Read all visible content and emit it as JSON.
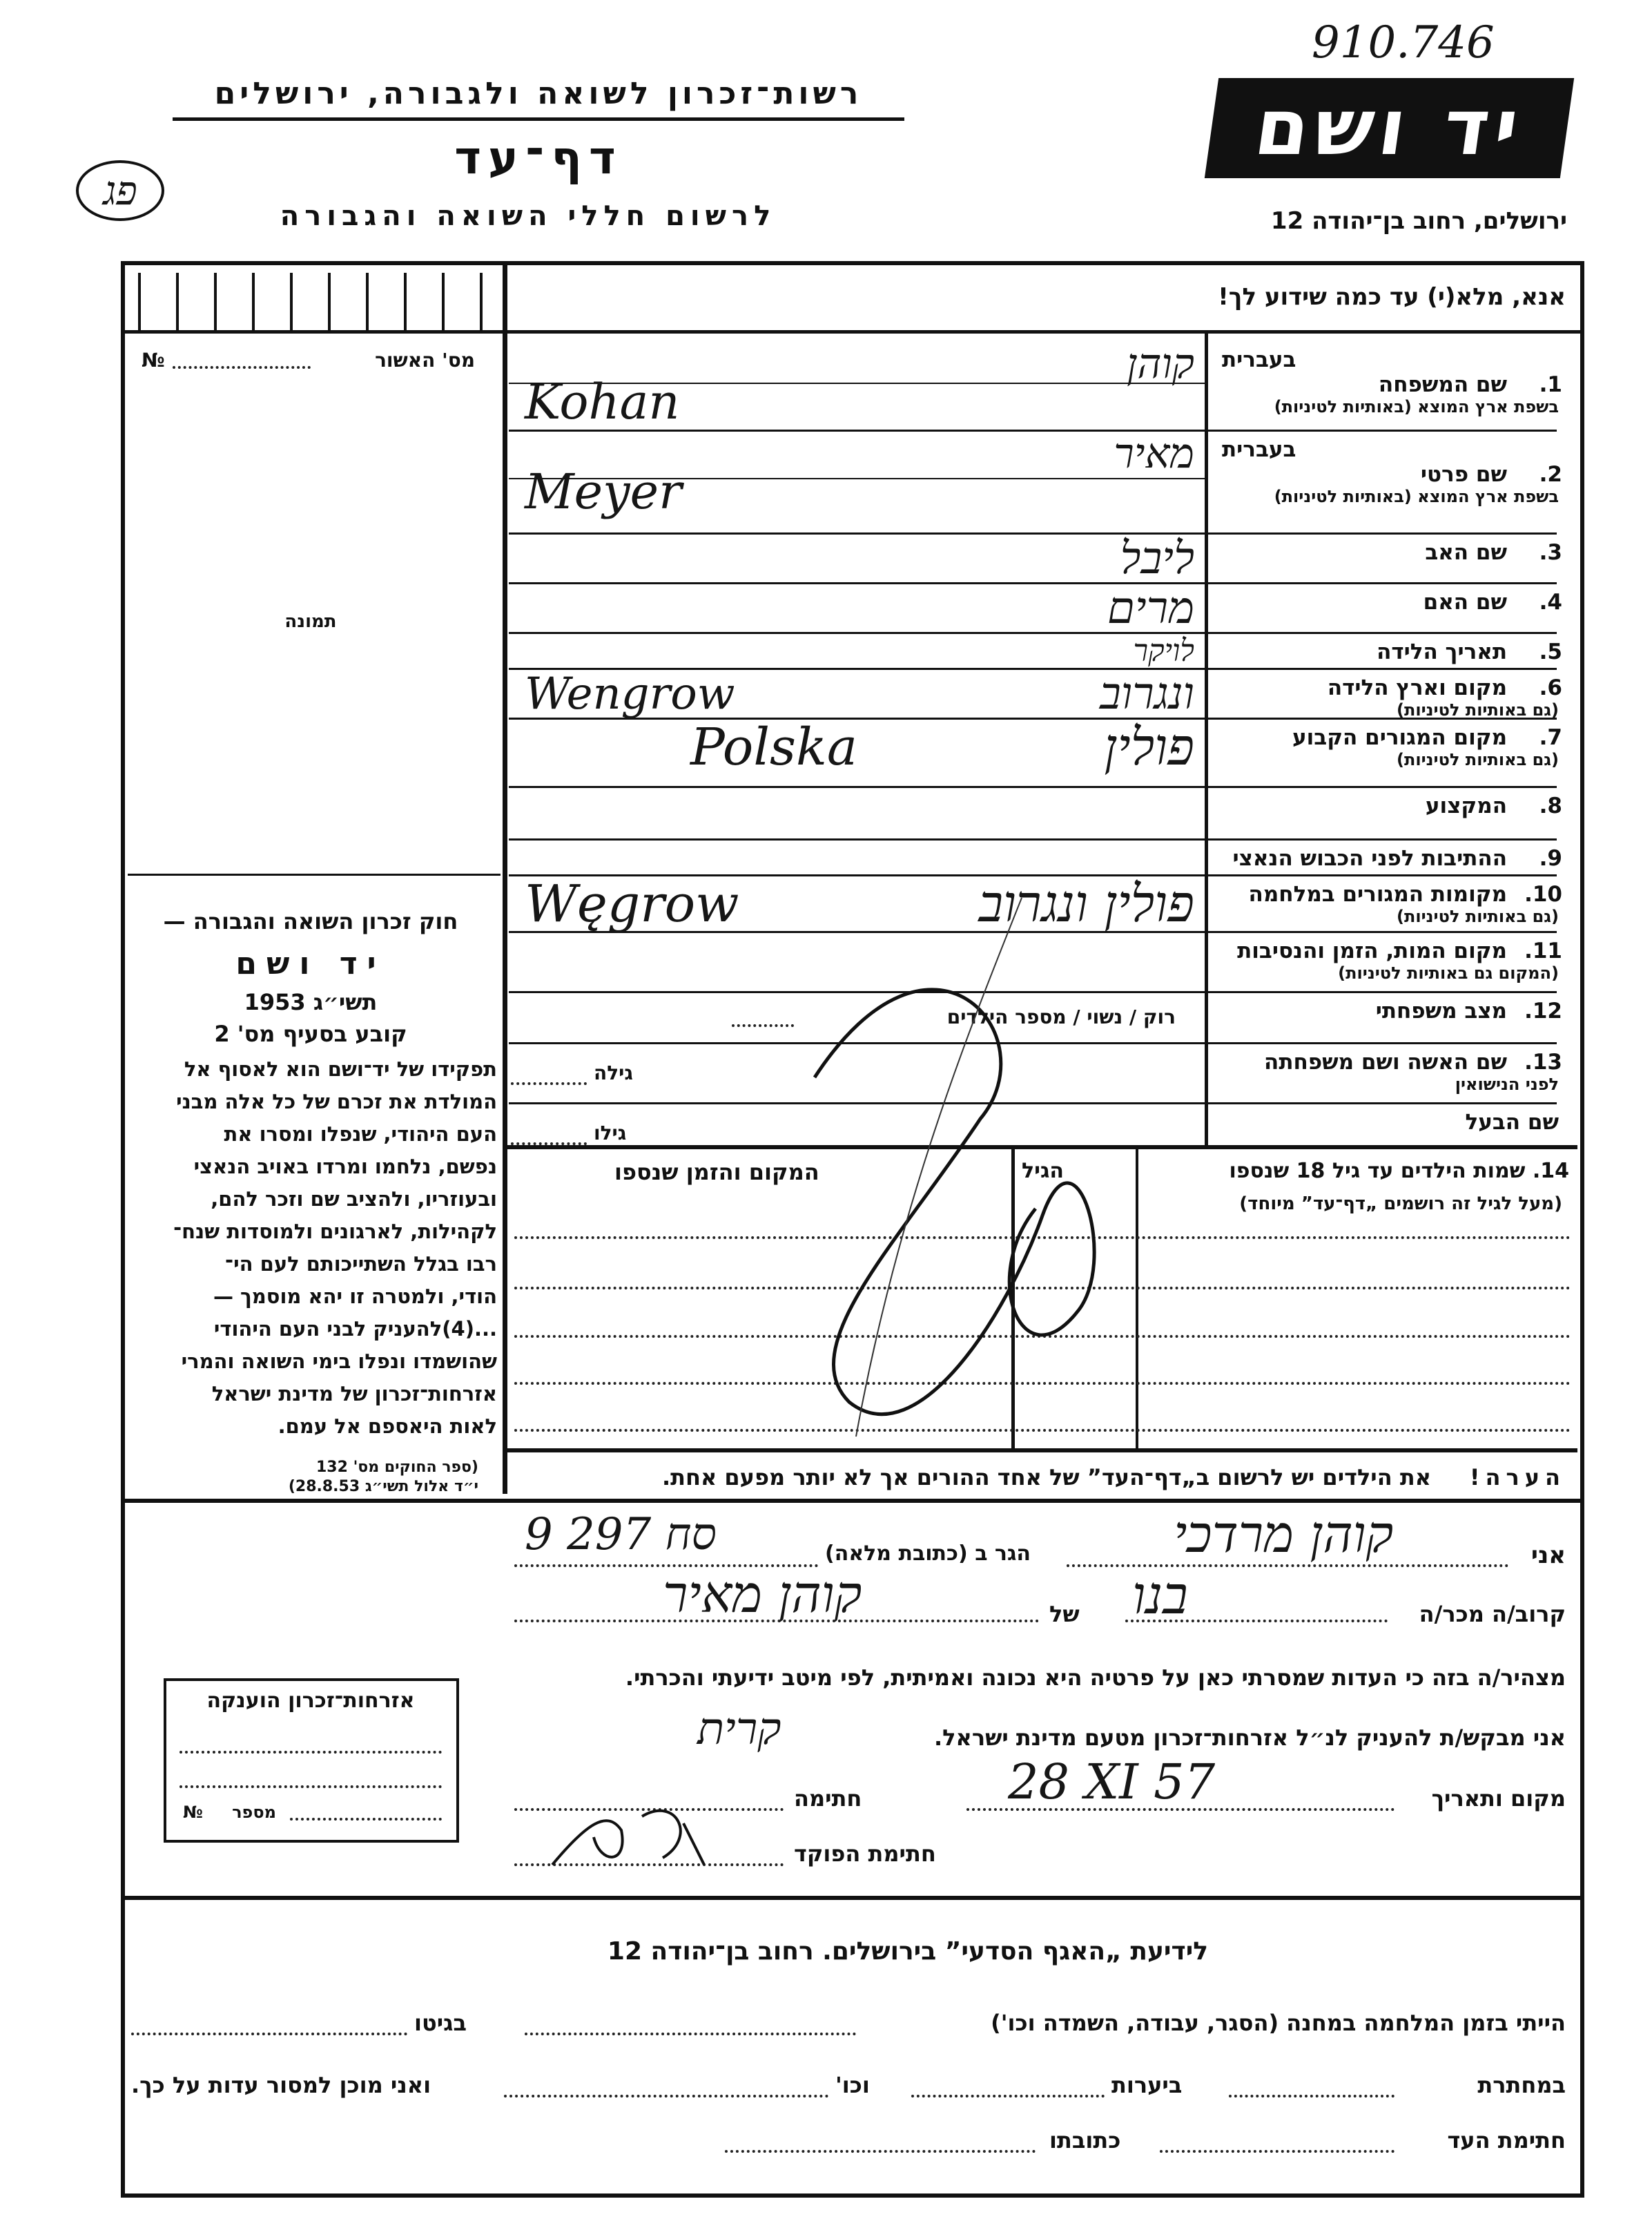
{
  "header": {
    "archive_number": "910.746",
    "org_line": "רשות־זכרון לשואה ולגבורה, ירושלים",
    "form_title": "דף־עד",
    "form_subtitle": "לרשום חללי השואה והגבורה",
    "logo_text": "יד ושם",
    "address": "ירושלים, רחוב בן־יהודה 12",
    "handwritten_mark": "פג"
  },
  "instruction": "אנא, מלא(י) עד כמה שידוע לך!",
  "left": {
    "approval_label": "מס' האשור",
    "approval_no": "№",
    "photo_label": "תמונה",
    "law_title": "חוק זכרון השואה והגבורה —",
    "law_name": "יד ושם",
    "law_year": "תשי״ג 1953",
    "law_clause": "קובע בסעיף מס' 2",
    "law_text": [
      "תפקידו של יד־ושם הוא לאסוף אל",
      "המולדת את זכרם של כל אלה מבני",
      "העם היהודי, שנפלו ומסרו את",
      "נפשם, נלחמו ומרדו באויב הנאצי",
      "ובעוזריו, ולהציב שם וזכר להם,",
      "לקהילות, לארגונים ולמוסדות שנח־",
      "רבו בגלל השתייכותם לעם הי־",
      "הודי, ולמטרה זו יהא מוסמך —",
      "...(4)להעניק לבני העם היהודי",
      "שהושמדו ונפלו בימי השואה והמרי",
      "אזרחות־זכרון של מדינת ישראל",
      "לאות היאספם אל עמם."
    ],
    "law_ref": [
      "(ספר החוקים מס' 132",
      "י״ד אלול תשי״ג 28.8.53)"
    ],
    "certificate": {
      "title": "אזרחות־זכרון הוענקה",
      "number_label": "מספר",
      "no_sign": "№"
    }
  },
  "rows": [
    {
      "num": "1.",
      "label": "שם המשפחה",
      "hebrew_label": "בעברית",
      "sub": "בשפת ארץ המוצא (באותיות לטיניות)",
      "value_he": "קוהן",
      "value_latin": "Kohan"
    },
    {
      "num": "2.",
      "label": "שם פרטי",
      "hebrew_label": "בעברית",
      "sub": "בשפת ארץ המוצא (באותיות לטיניות)",
      "value_he": "מאיר",
      "value_latin": "Meyer"
    },
    {
      "num": "3.",
      "label": "שם האב",
      "value_he": "ליבל"
    },
    {
      "num": "4.",
      "label": "שם האם",
      "value_he": "מרים"
    },
    {
      "num": "5.",
      "label": "תאריך הלידה",
      "value_he": "לויקר"
    },
    {
      "num": "6.",
      "label": "מקום וארץ הלידה",
      "sub": "(גם באותיות לטיניות)",
      "value_he": "ונגרוב",
      "value_latin": "Wengrow"
    },
    {
      "num": "7.",
      "label": "מקום המגורים הקבוע",
      "sub": "(גם באותיות לטיניות)",
      "value_he": "פולין",
      "value_latin": "Polska"
    },
    {
      "num": "8.",
      "label": "המקצוע"
    },
    {
      "num": "9.",
      "label": "ההתיבות לפני הכבוש הנאצי"
    },
    {
      "num": "10.",
      "label": "מקומות המגורים במלחמה",
      "sub": "(גם באותיות לטיניות)",
      "value_he": "פולין ונגרוב",
      "value_latin": "Węgrow"
    },
    {
      "num": "11.",
      "label": "מקום המות, הזמן והנסיבות",
      "sub": "(המקום גם באותיות לטיניות)"
    },
    {
      "num": "12.",
      "label": "מצב משפחתי",
      "field_hint": "רוק / נשוי / מספר הילדים"
    },
    {
      "num": "13.",
      "label": "שם האשה ושם משפחתה",
      "sub": "לפני הנישואין",
      "field_hint": "גילה"
    },
    {
      "num": "",
      "label": "שם הבעל",
      "field_hint": "גילו"
    }
  ],
  "children": {
    "label": "14. שמות הילדים עד גיל 18 שנספו",
    "sub": "(מעל לגיל זה רושמים „דף־עד” מיוחד)",
    "age_header": "הגיל",
    "place_header": "המקום והזמן שנספו"
  },
  "note": {
    "label": "הערה!",
    "text": "את הילדים יש לרשום ב„דף־העד” של אחד ההורים אך לא יותר מפעם אחת."
  },
  "declaration": {
    "i_label": "אני",
    "witness_name": "קוהן מרדכי",
    "lives_label": "הגר ב (כתובת מלאה)",
    "address_value": "9 סח 297",
    "relation_label": "קרוב/ה מכר/ה",
    "relation_value": "בנו",
    "of_label": "של",
    "of_value": "קוהן מאיר",
    "statement": "מצהיר/ה בזה כי העדות שמסרתי כאן על פרטיה היא נכונה ואמיתית, לפי מיטב ידיעתי והכרתי.",
    "request": "אני מבקש/ת להעניק לנ״ל אזרחות־זכרון מטעם מדינת ישראל.",
    "request_mark": "קרית",
    "place_date_label": "מקום ותאריך",
    "place_date_value": "28 XI 57",
    "signature_label": "חתימה",
    "official_label": "חתימת הפוקד"
  },
  "bottom": {
    "title": "לידיעת „האגף הסדעי” בירושלים. רחוב בן־יהודה 12",
    "camp_label": "הייתי בזמן המלחמה במחנה (הסגר, עבודה, השמדה וכו')",
    "ghetto_label": "בגיטו",
    "underground_label": "במחתרת",
    "forest_label": "ביערות",
    "etc_label": "וכו'",
    "ready_label": "ואני מוכן למסור עדות על כך.",
    "witness_sig_label": "חתימת העד",
    "address_label": "כתובתו"
  }
}
